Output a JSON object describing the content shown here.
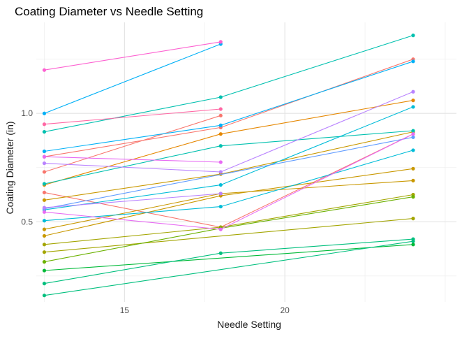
{
  "chart_data": {
    "type": "line",
    "title": "Coating Diameter vs Needle Setting",
    "xlabel": "Needle Setting",
    "ylabel": "Coating Diameter (in)",
    "xlim": [
      12.25,
      25.35
    ],
    "ylim": [
      0.13,
      1.42
    ],
    "x_ticks": [
      15,
      20
    ],
    "x_minor_ticks": [
      12.5,
      17.5,
      22.5,
      25
    ],
    "y_ticks": [
      0.5,
      1.0
    ],
    "y_tick_labels": [
      "0.5",
      "1.0"
    ],
    "y_minor_ticks": [
      0.25,
      0.75,
      1.25
    ],
    "grid": true,
    "legend": "none",
    "series": [
      {
        "color": "#F8766D",
        "points": [
          [
            12.5,
            0.635
          ],
          [
            18,
            0.475
          ],
          [
            24,
            0.905
          ]
        ]
      },
      {
        "color": "#F8766D",
        "points": [
          [
            12.5,
            0.73
          ],
          [
            18,
            0.99
          ]
        ]
      },
      {
        "color": "#F8766D",
        "points": [
          [
            12.5,
            0.8
          ],
          [
            18,
            0.935
          ],
          [
            24,
            1.25
          ]
        ]
      },
      {
        "color": "#E58700",
        "points": [
          [
            12.5,
            0.67
          ],
          [
            18,
            0.905
          ],
          [
            24,
            1.06
          ]
        ]
      },
      {
        "color": "#C99800",
        "points": [
          [
            12.5,
            0.6
          ],
          [
            18,
            0.72
          ],
          [
            24,
            0.915
          ]
        ]
      },
      {
        "color": "#C99800",
        "points": [
          [
            12.5,
            0.465
          ],
          [
            18,
            0.63
          ],
          [
            24,
            0.69
          ]
        ]
      },
      {
        "color": "#C99800",
        "points": [
          [
            12.5,
            0.435
          ],
          [
            18,
            0.62
          ],
          [
            24,
            0.745
          ]
        ]
      },
      {
        "color": "#A3A500",
        "points": [
          [
            12.5,
            0.395
          ],
          [
            18,
            0.475
          ],
          [
            24,
            0.625
          ]
        ]
      },
      {
        "color": "#A3A500",
        "points": [
          [
            12.5,
            0.36
          ],
          [
            24,
            0.515
          ]
        ]
      },
      {
        "color": "#6BB100",
        "points": [
          [
            12.5,
            0.315
          ],
          [
            18,
            0.47
          ],
          [
            24,
            0.615
          ]
        ]
      },
      {
        "color": "#00BA38",
        "points": [
          [
            12.5,
            0.275
          ],
          [
            24,
            0.395
          ]
        ]
      },
      {
        "color": "#00BF7D",
        "points": [
          [
            12.5,
            0.215
          ],
          [
            18,
            0.355
          ],
          [
            24,
            0.42
          ]
        ]
      },
      {
        "color": "#00BF7D",
        "points": [
          [
            12.5,
            0.16
          ],
          [
            24,
            0.41
          ]
        ]
      },
      {
        "color": "#00C0AF",
        "points": [
          [
            12.5,
            0.915
          ],
          [
            18,
            1.075
          ],
          [
            24,
            1.36
          ]
        ]
      },
      {
        "color": "#00C0AF",
        "points": [
          [
            12.5,
            0.675
          ],
          [
            18,
            0.85
          ],
          [
            24,
            0.92
          ]
        ]
      },
      {
        "color": "#00BCD8",
        "points": [
          [
            12.5,
            0.555
          ],
          [
            18,
            0.67
          ],
          [
            24,
            1.03
          ]
        ]
      },
      {
        "color": "#00BCD8",
        "points": [
          [
            12.5,
            0.505
          ],
          [
            18,
            0.57
          ],
          [
            24,
            0.83
          ]
        ]
      },
      {
        "color": "#00B0F6",
        "points": [
          [
            12.5,
            1.0
          ],
          [
            18,
            1.32
          ]
        ]
      },
      {
        "color": "#00B0F6",
        "points": [
          [
            12.5,
            0.825
          ],
          [
            18,
            0.945
          ],
          [
            24,
            1.24
          ]
        ]
      },
      {
        "color": "#619CFF",
        "points": [
          [
            12.5,
            0.56
          ],
          [
            24,
            0.89
          ]
        ]
      },
      {
        "color": "#B983FF",
        "points": [
          [
            12.5,
            0.77
          ],
          [
            18,
            0.73
          ],
          [
            24,
            1.1
          ]
        ]
      },
      {
        "color": "#B983FF",
        "points": [
          [
            12.5,
            0.565
          ],
          [
            18,
            0.63
          ]
        ]
      },
      {
        "color": "#E76BF3",
        "points": [
          [
            12.5,
            0.8
          ],
          [
            18,
            0.775
          ]
        ]
      },
      {
        "color": "#E76BF3",
        "points": [
          [
            12.5,
            0.545
          ],
          [
            18,
            0.465
          ],
          [
            24,
            0.905
          ]
        ]
      },
      {
        "color": "#FD61D1",
        "points": [
          [
            12.5,
            1.2
          ],
          [
            18,
            1.33
          ]
        ]
      },
      {
        "color": "#FF67A4",
        "points": [
          [
            12.5,
            0.95
          ],
          [
            18,
            1.02
          ]
        ]
      }
    ]
  }
}
